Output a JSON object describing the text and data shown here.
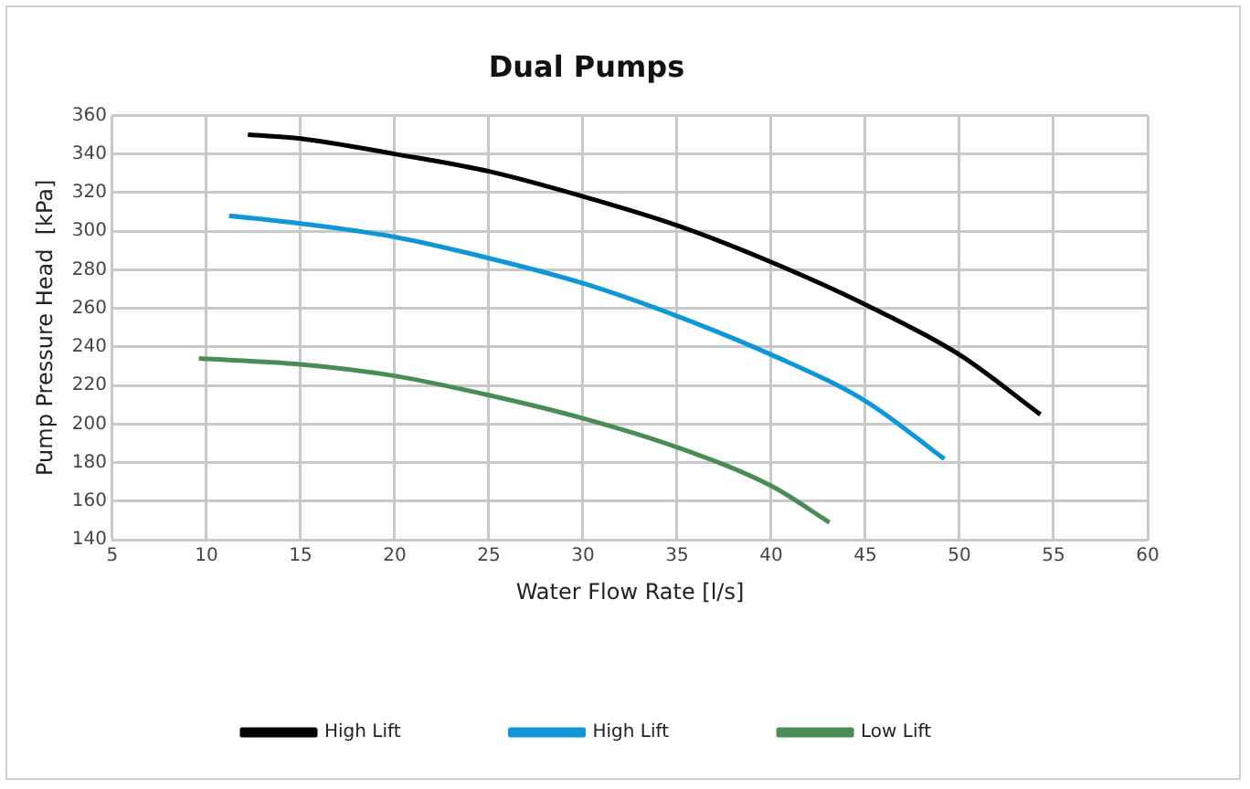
{
  "chart_data": {
    "type": "line",
    "title": "Dual Pumps",
    "xlabel": "Water Flow Rate [l/s]",
    "ylabel": "Pump Pressure Head  [kPa]",
    "xlim": [
      5,
      60
    ],
    "xticks": [
      5,
      10,
      15,
      20,
      25,
      30,
      35,
      40,
      45,
      50,
      55,
      60
    ],
    "ylim": [
      140,
      360
    ],
    "yticks": [
      140,
      160,
      180,
      200,
      220,
      240,
      260,
      280,
      300,
      320,
      340,
      360
    ],
    "grid": true,
    "legend": "bottom",
    "marker": "none",
    "line_style": "solid",
    "series": [
      {
        "name": "High Lift",
        "color": "#000000",
        "x": [
          12.2,
          15,
          20,
          25,
          30,
          35,
          40,
          45,
          50,
          54.3
        ],
        "values": [
          350,
          348,
          340,
          331,
          318,
          303,
          284,
          262,
          236,
          205
        ]
      },
      {
        "name": "High Lift",
        "color": "#0f96d8",
        "x": [
          11.2,
          15,
          20,
          25,
          30,
          35,
          40,
          45,
          49.2
        ],
        "values": [
          308,
          304,
          297,
          286,
          273,
          256,
          236,
          212,
          182
        ]
      },
      {
        "name": "Low Lift",
        "color": "#4a8c55",
        "x": [
          9.6,
          15,
          20,
          25,
          30,
          35,
          40,
          43.1
        ],
        "values": [
          234,
          231,
          225,
          215,
          203,
          188,
          168,
          149
        ]
      }
    ]
  }
}
